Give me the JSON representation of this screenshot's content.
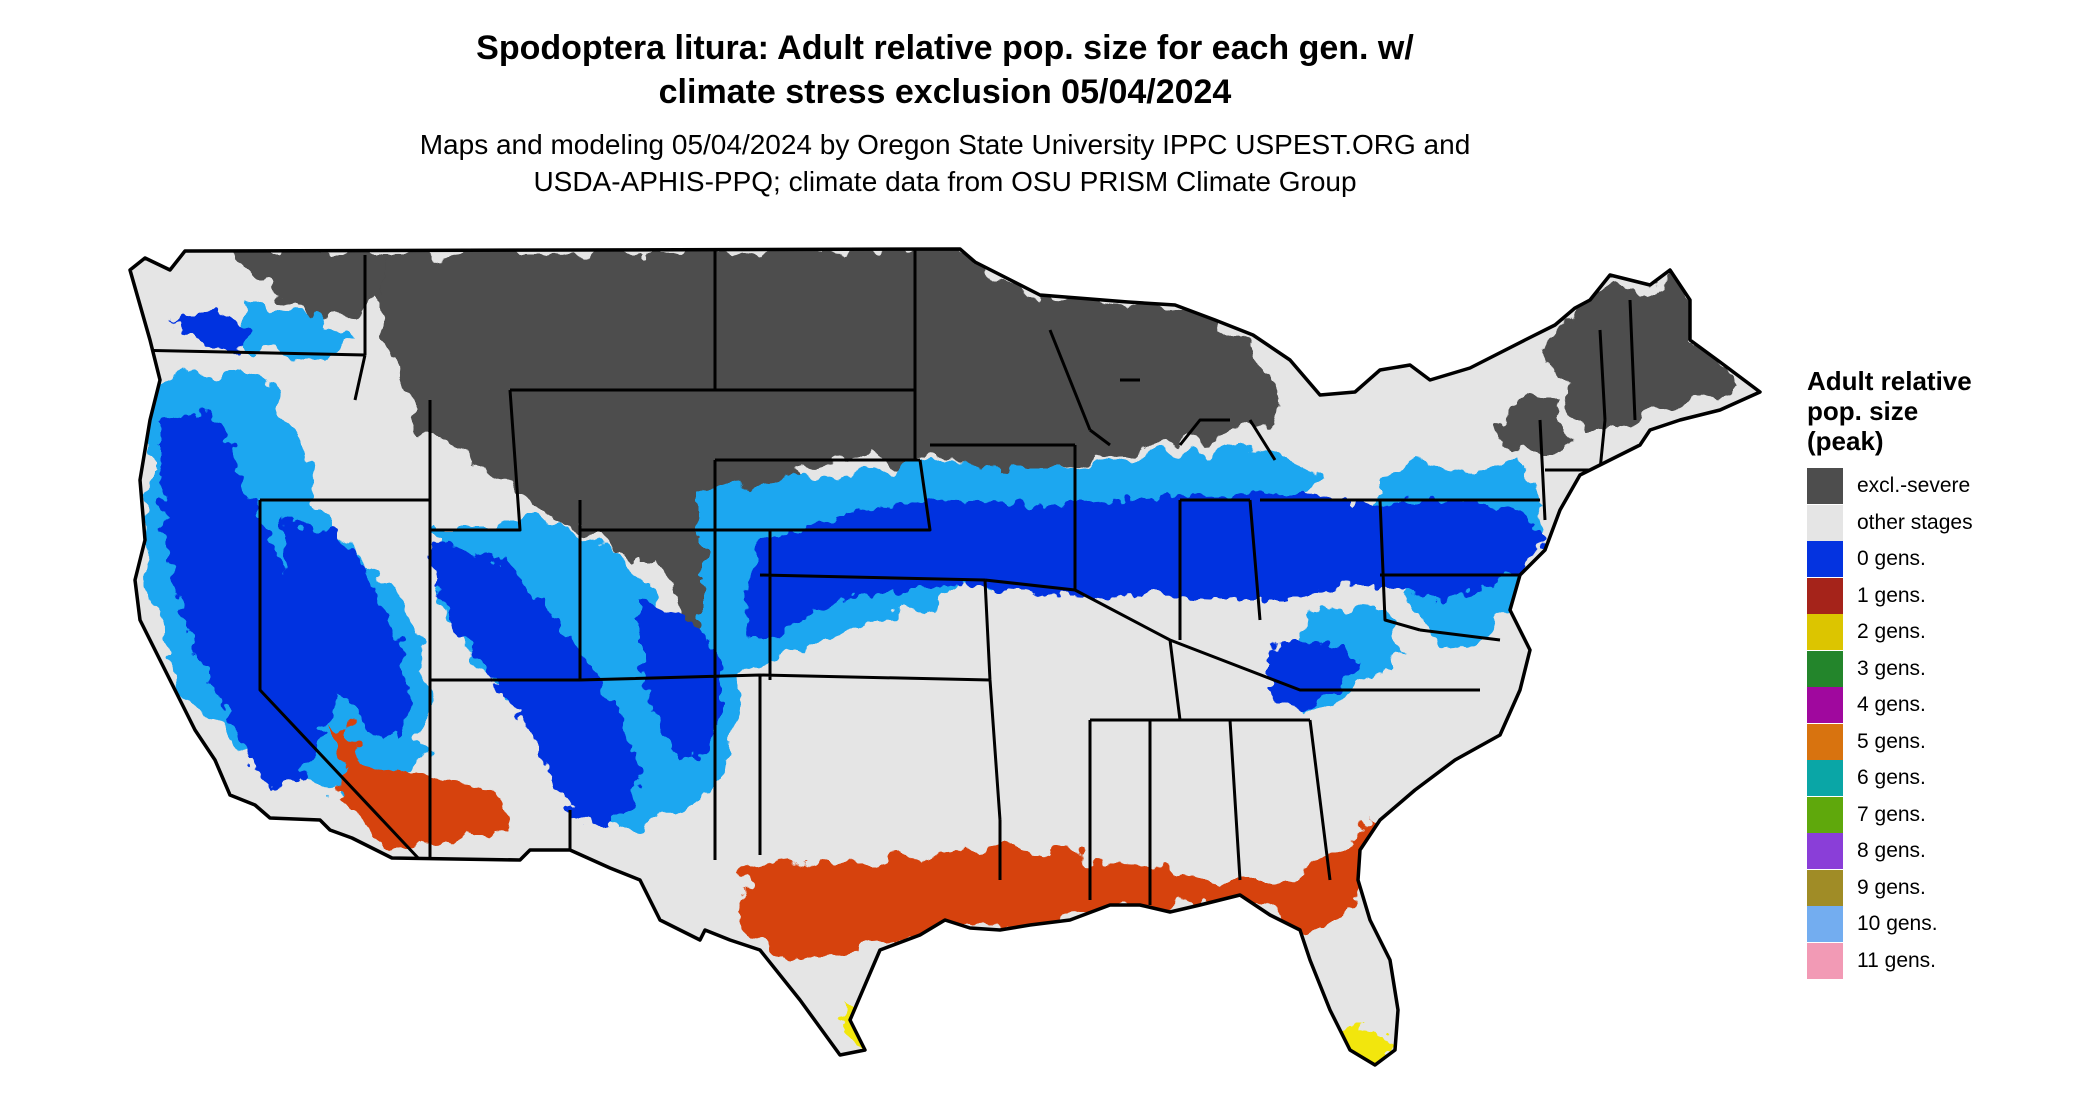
{
  "title": {
    "line1": "Spodoptera litura: Adult relative pop. size for each gen. w/",
    "line2": "climate stress exclusion 05/04/2024"
  },
  "subtitle": {
    "line1": "Maps and modeling 05/04/2024 by Oregon State University IPPC USPEST.ORG and",
    "line2": "USDA-APHIS-PPQ; climate data from OSU PRISM Climate Group"
  },
  "legend": {
    "title_lines": [
      "Adult relative",
      "pop. size",
      "(peak)"
    ],
    "items": [
      {
        "label": "excl.-severe",
        "color": "#4d4d4d"
      },
      {
        "label": "other stages",
        "color": "#e5e5e5"
      },
      {
        "label": "0 gens.",
        "color": "#0433e0"
      },
      {
        "label": "1 gens.",
        "color": "#a5231a"
      },
      {
        "label": "2 gens.",
        "color": "#dcc500"
      },
      {
        "label": "3 gens.",
        "color": "#23852b"
      },
      {
        "label": "4 gens.",
        "color": "#a0089e"
      },
      {
        "label": "5 gens.",
        "color": "#d8730f"
      },
      {
        "label": "6 gens.",
        "color": "#0aa6a6"
      },
      {
        "label": "7 gens.",
        "color": "#5fa80c"
      },
      {
        "label": "8 gens.",
        "color": "#8a3ed8"
      },
      {
        "label": "9 gens.",
        "color": "#a08c26"
      },
      {
        "label": "10 gens.",
        "color": "#73adf0"
      },
      {
        "label": "11 gens.",
        "color": "#f29ab5"
      }
    ]
  },
  "map_colors": {
    "excluded": "#4d4d4d",
    "other": "#e5e5e5",
    "gen0": "#0433e0",
    "gen0_light": "#1ea7f0",
    "gen1": "#d6420f",
    "gen2": "#f2e60a",
    "border": "#000000"
  }
}
